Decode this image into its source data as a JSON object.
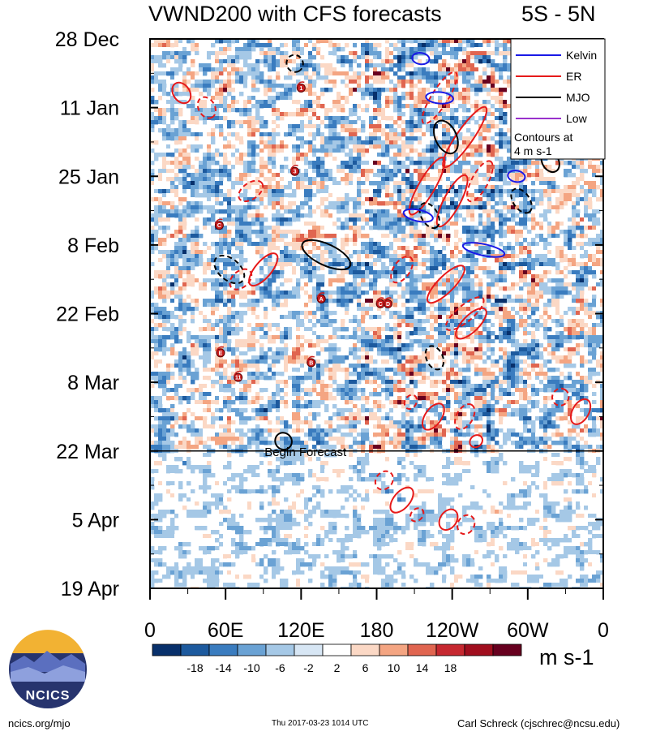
{
  "header": {
    "title": "VWND200 with CFS forecasts",
    "region": "5S - 5N"
  },
  "chart_data": {
    "type": "heatmap",
    "variable": "VWND200",
    "description_title": "VWND200 with CFS forecasts",
    "latitude_band": "5S - 5N",
    "x_axis": {
      "tick_labels": [
        "0",
        "60E",
        "120E",
        "180",
        "120W",
        "60W",
        "0"
      ],
      "tick_values_deg": [
        0,
        60,
        120,
        180,
        240,
        300,
        360
      ],
      "range": [
        0,
        360
      ]
    },
    "y_axis": {
      "tick_labels": [
        "28 Dec",
        "11 Jan",
        "25 Jan",
        "8 Feb",
        "22 Feb",
        "8 Mar",
        "22 Mar",
        "5 Apr",
        "19 Apr"
      ],
      "tick_day_offsets": [
        0,
        14,
        28,
        42,
        56,
        70,
        84,
        98,
        112
      ],
      "range_days": [
        0,
        112
      ],
      "inverted": true
    },
    "forecast_start": {
      "label": "Begin Forecast",
      "day_offset": 84
    },
    "colorbar": {
      "labels": [
        "-18",
        "-14",
        "-10",
        "-6",
        "-2",
        "2",
        "6",
        "10",
        "14",
        "18"
      ],
      "colors": [
        "#08306b",
        "#1d5a9e",
        "#3a7cbf",
        "#6aa2d4",
        "#a5c8e6",
        "#d7e6f4",
        "#ffffff",
        "#fbd8c5",
        "#f4a582",
        "#e06550",
        "#c62830",
        "#a00e1e",
        "#67001f"
      ],
      "units": "m s-1"
    },
    "legend": {
      "entries": [
        {
          "label": "Kelvin",
          "color": "#1a1ae6"
        },
        {
          "label": "ER",
          "color": "#e61a1a"
        },
        {
          "label": "MJO",
          "color": "#000000"
        },
        {
          "label": "Low",
          "color": "#9932cc"
        }
      ],
      "note_line1": "Contours at",
      "note_line2": "4 m s-1",
      "placement": "top-right"
    },
    "storms": [
      {
        "id": "1",
        "lon": 120,
        "day": 10
      },
      {
        "id": "3",
        "lon": 115,
        "day": 27
      },
      {
        "id": "C",
        "lon": 55,
        "day": 38
      },
      {
        "id": "A",
        "lon": 136,
        "day": 53
      },
      {
        "id": "E",
        "lon": 56,
        "day": 64
      },
      {
        "id": "B",
        "lon": 128,
        "day": 66
      },
      {
        "id": "11",
        "lon": 70,
        "day": 69
      },
      {
        "id": "C",
        "lon": 183,
        "day": 54
      },
      {
        "id": "D",
        "lon": 189,
        "day": 54
      }
    ],
    "wave_contours": [
      {
        "wave": "ER",
        "sign": "+",
        "lon": 25,
        "day": 11,
        "len_deg": 10,
        "width_days": 2,
        "tilt": 55
      },
      {
        "wave": "ER",
        "sign": "-",
        "lon": 45,
        "day": 14,
        "len_deg": 10,
        "width_days": 2,
        "tilt": 60
      },
      {
        "wave": "ER",
        "sign": "-",
        "lon": 80,
        "day": 31,
        "len_deg": 14,
        "width_days": 2,
        "tilt": -35
      },
      {
        "wave": "MJO",
        "sign": "-",
        "lon": 63,
        "day": 47,
        "len_deg": 20,
        "width_days": 3,
        "tilt": 40
      },
      {
        "wave": "ER",
        "sign": "+",
        "lon": 90,
        "day": 47,
        "len_deg": 24,
        "width_days": 2,
        "tilt": -50
      },
      {
        "wave": "ER",
        "sign": "-",
        "lon": 72,
        "day": 49,
        "len_deg": 12,
        "width_days": 2,
        "tilt": -40
      },
      {
        "wave": "MJO",
        "sign": "+",
        "lon": 140,
        "day": 44,
        "len_deg": 34,
        "width_days": 3,
        "tilt": 25
      },
      {
        "wave": "MJO",
        "sign": "-",
        "lon": 115,
        "day": 5,
        "len_deg": 6,
        "width_days": 2,
        "tilt": 60
      },
      {
        "wave": "ER",
        "sign": "+",
        "lon": 220,
        "day": 30,
        "len_deg": 44,
        "width_days": 2,
        "tilt": -60
      },
      {
        "wave": "ER",
        "sign": "+",
        "lon": 240,
        "day": 33,
        "len_deg": 38,
        "width_days": 2,
        "tilt": -62
      },
      {
        "wave": "ER",
        "sign": "-",
        "lon": 230,
        "day": 12,
        "len_deg": 40,
        "width_days": 2,
        "tilt": -58
      },
      {
        "wave": "ER",
        "sign": "+",
        "lon": 250,
        "day": 20,
        "len_deg": 50,
        "width_days": 2,
        "tilt": -55
      },
      {
        "wave": "ER",
        "sign": "-",
        "lon": 262,
        "day": 29,
        "len_deg": 28,
        "width_days": 2,
        "tilt": -62
      },
      {
        "wave": "MJO",
        "sign": "+",
        "lon": 235,
        "day": 20,
        "len_deg": 20,
        "width_days": 3,
        "tilt": 65
      },
      {
        "wave": "MJO",
        "sign": "-",
        "lon": 222,
        "day": 36,
        "len_deg": 14,
        "width_days": 2,
        "tilt": 60
      },
      {
        "wave": "MJO",
        "sign": "+",
        "lon": 318,
        "day": 25,
        "len_deg": 10,
        "width_days": 2,
        "tilt": 60
      },
      {
        "wave": "MJO",
        "sign": "-",
        "lon": 295,
        "day": 33,
        "len_deg": 14,
        "width_days": 2,
        "tilt": 55
      },
      {
        "wave": "ER",
        "sign": "+",
        "lon": 235,
        "day": 50,
        "len_deg": 32,
        "width_days": 2,
        "tilt": -45
      },
      {
        "wave": "ER",
        "sign": "-",
        "lon": 200,
        "day": 47,
        "len_deg": 16,
        "width_days": 2,
        "tilt": -55
      },
      {
        "wave": "ER",
        "sign": "-",
        "lon": 250,
        "day": 56,
        "len_deg": 30,
        "width_days": 2,
        "tilt": -40
      },
      {
        "wave": "ER",
        "sign": "+",
        "lon": 255,
        "day": 58,
        "len_deg": 24,
        "width_days": 2,
        "tilt": -45
      },
      {
        "wave": "MJO",
        "sign": "-",
        "lon": 226,
        "day": 65,
        "len_deg": 12,
        "width_days": 2,
        "tilt": 65
      },
      {
        "wave": "ER",
        "sign": "+",
        "lon": 225,
        "day": 77,
        "len_deg": 16,
        "width_days": 2,
        "tilt": -55
      },
      {
        "wave": "ER",
        "sign": "-",
        "lon": 250,
        "day": 77,
        "len_deg": 14,
        "width_days": 2,
        "tilt": -60
      },
      {
        "wave": "ER",
        "sign": "-",
        "lon": 207,
        "day": 74,
        "len_deg": 4,
        "width_days": 1,
        "tilt": -60
      },
      {
        "wave": "ER",
        "sign": "+",
        "lon": 259,
        "day": 82,
        "len_deg": 3,
        "width_days": 1,
        "tilt": -40
      },
      {
        "wave": "ER",
        "sign": "+",
        "lon": 342,
        "day": 76,
        "len_deg": 14,
        "width_days": 2,
        "tilt": -60
      },
      {
        "wave": "ER",
        "sign": "-",
        "lon": 326,
        "day": 73,
        "len_deg": 6,
        "width_days": 2,
        "tilt": -60
      },
      {
        "wave": "MJO",
        "sign": "+",
        "lon": 106,
        "day": 82,
        "len_deg": 6,
        "width_days": 2,
        "tilt": 50
      },
      {
        "wave": "ER",
        "sign": "+",
        "lon": 200,
        "day": 94,
        "len_deg": 16,
        "width_days": 2,
        "tilt": -50
      },
      {
        "wave": "ER",
        "sign": "-",
        "lon": 186,
        "day": 90,
        "len_deg": 8,
        "width_days": 2,
        "tilt": -50
      },
      {
        "wave": "ER",
        "sign": "-",
        "lon": 212,
        "day": 97,
        "len_deg": 4,
        "width_days": 1,
        "tilt": -45
      },
      {
        "wave": "ER",
        "sign": "+",
        "lon": 237,
        "day": 98,
        "len_deg": 10,
        "width_days": 2,
        "tilt": -55
      },
      {
        "wave": "ER",
        "sign": "-",
        "lon": 251,
        "day": 99,
        "len_deg": 8,
        "width_days": 2,
        "tilt": -60
      },
      {
        "wave": "Kelvin",
        "sign": "+",
        "lon": 215,
        "day": 4,
        "len_deg": 6,
        "width_days": 1,
        "tilt": 8
      },
      {
        "wave": "Kelvin",
        "sign": "+",
        "lon": 230,
        "day": 12,
        "len_deg": 14,
        "width_days": 1,
        "tilt": 5
      },
      {
        "wave": "Kelvin",
        "sign": "+",
        "lon": 213,
        "day": 36,
        "len_deg": 16,
        "width_days": 1,
        "tilt": 12
      },
      {
        "wave": "Kelvin",
        "sign": "+",
        "lon": 265,
        "day": 43,
        "len_deg": 26,
        "width_days": 1,
        "tilt": 12
      },
      {
        "wave": "Kelvin",
        "sign": "+",
        "lon": 291,
        "day": 28,
        "len_deg": 6,
        "width_days": 1,
        "tilt": 10
      }
    ]
  },
  "colorbar": {
    "labels": [
      "-18",
      "-14",
      "-10",
      "-6",
      "-2",
      "2",
      "6",
      "10",
      "14",
      "18"
    ],
    "units": "m s-1"
  },
  "footer": {
    "logo_text": "NCICS",
    "url": "ncics.org/mjo",
    "timestamp": "Thu 2017-03-23 1014 UTC",
    "credit": "Carl Schreck (cjschrec@ncsu.edu)"
  }
}
